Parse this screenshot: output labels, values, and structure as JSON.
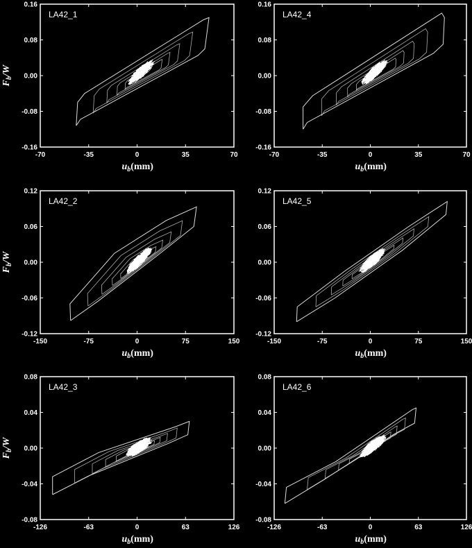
{
  "figure": {
    "xlabel_var": "u",
    "xlabel_sub": "b",
    "xlabel_unit": "(mm)",
    "ylabel_var": "F",
    "ylabel_sub": "b",
    "ylabel_den": "/W"
  },
  "chart_data": [
    {
      "type": "line",
      "label": "LA42_1",
      "xticks": [
        "-70",
        "-35",
        "0",
        "35",
        "70"
      ],
      "xlim": [
        -70,
        70
      ],
      "yticks": [
        "-0.16",
        "-0.08",
        "0.00",
        "0.08",
        "0.16"
      ],
      "ylim": [
        -0.16,
        0.16
      ],
      "envelope": [
        [
          -44,
          -0.112
        ],
        [
          -43,
          -0.06
        ],
        [
          -38,
          -0.04
        ],
        [
          48,
          0.125
        ],
        [
          52,
          0.13
        ],
        [
          49,
          0.06
        ],
        [
          44,
          0.045
        ],
        [
          -41,
          -0.098
        ],
        [
          -44,
          -0.112
        ]
      ],
      "max_displacement_mm": 52,
      "min_displacement_mm": -44,
      "max_force_ratio": 0.13,
      "min_force_ratio": -0.112
    },
    {
      "type": "line",
      "label": "LA42_4",
      "xticks": [
        "-70",
        "-35",
        "0",
        "35",
        "70"
      ],
      "xlim": [
        -70,
        70
      ],
      "yticks": [
        "-0.16",
        "-0.08",
        "0.00",
        "0.08",
        "0.16"
      ],
      "ylim": [
        -0.16,
        0.16
      ],
      "envelope": [
        [
          -49,
          -0.12
        ],
        [
          -49,
          -0.07
        ],
        [
          -42,
          -0.045
        ],
        [
          52,
          0.14
        ],
        [
          54,
          0.13
        ],
        [
          53,
          0.07
        ],
        [
          46,
          0.05
        ],
        [
          -46,
          -0.105
        ],
        [
          -49,
          -0.12
        ]
      ],
      "max_displacement_mm": 54,
      "min_displacement_mm": -49,
      "max_force_ratio": 0.14,
      "min_force_ratio": -0.12
    },
    {
      "type": "line",
      "label": "LA42_2",
      "xticks": [
        "-150",
        "-75",
        "0",
        "75",
        "150"
      ],
      "xlim": [
        -150,
        150
      ],
      "yticks": [
        "-0.12",
        "-0.06",
        "0.00",
        "0.06",
        "0.12"
      ],
      "ylim": [
        -0.12,
        0.12
      ],
      "envelope": [
        [
          -103,
          -0.098
        ],
        [
          -104,
          -0.07
        ],
        [
          -35,
          0.015
        ],
        [
          45,
          0.07
        ],
        [
          92,
          0.093
        ],
        [
          88,
          0.06
        ],
        [
          30,
          0.01
        ],
        [
          -60,
          -0.065
        ],
        [
          -103,
          -0.098
        ]
      ],
      "max_displacement_mm": 92,
      "min_displacement_mm": -104,
      "max_force_ratio": 0.093,
      "min_force_ratio": -0.098
    },
    {
      "type": "line",
      "label": "LA42_5",
      "xticks": [
        "-150",
        "-75",
        "0",
        "75",
        "150"
      ],
      "xlim": [
        -150,
        150
      ],
      "yticks": [
        "-0.12",
        "-0.06",
        "0.00",
        "0.06",
        "0.12"
      ],
      "ylim": [
        -0.12,
        0.12
      ],
      "envelope": [
        [
          -115,
          -0.1
        ],
        [
          -114,
          -0.075
        ],
        [
          -40,
          -0.015
        ],
        [
          60,
          0.06
        ],
        [
          120,
          0.102
        ],
        [
          118,
          0.08
        ],
        [
          50,
          0.02
        ],
        [
          -55,
          -0.06
        ],
        [
          -115,
          -0.1
        ]
      ],
      "max_displacement_mm": 120,
      "min_displacement_mm": -115,
      "max_force_ratio": 0.102,
      "min_force_ratio": -0.1
    },
    {
      "type": "line",
      "label": "LA42_3",
      "xticks": [
        "-126",
        "-63",
        "0",
        "63",
        "126"
      ],
      "xlim": [
        -126,
        126
      ],
      "yticks": [
        "-0.08",
        "-0.04",
        "0.00",
        "0.04",
        "0.08"
      ],
      "ylim": [
        -0.08,
        0.08
      ],
      "envelope": [
        [
          -110,
          -0.052
        ],
        [
          -110,
          -0.032
        ],
        [
          -50,
          -0.005
        ],
        [
          50,
          0.024
        ],
        [
          68,
          0.03
        ],
        [
          66,
          0.015
        ],
        [
          40,
          0.005
        ],
        [
          -60,
          -0.03
        ],
        [
          -110,
          -0.052
        ]
      ],
      "max_displacement_mm": 68,
      "min_displacement_mm": -110,
      "max_force_ratio": 0.03,
      "min_force_ratio": -0.052
    },
    {
      "type": "line",
      "label": "LA42_6",
      "xticks": [
        "-126",
        "-63",
        "0",
        "63",
        "126"
      ],
      "xlim": [
        -126,
        126
      ],
      "yticks": [
        "-0.08",
        "-0.04",
        "0.00",
        "0.04",
        "0.08"
      ],
      "ylim": [
        -0.08,
        0.08
      ],
      "envelope": [
        [
          -112,
          -0.062
        ],
        [
          -110,
          -0.044
        ],
        [
          -45,
          -0.015
        ],
        [
          55,
          0.043
        ],
        [
          60,
          0.045
        ],
        [
          58,
          0.028
        ],
        [
          30,
          0.015
        ],
        [
          -60,
          -0.035
        ],
        [
          -112,
          -0.062
        ]
      ],
      "max_displacement_mm": 60,
      "min_displacement_mm": -112,
      "max_force_ratio": 0.045,
      "min_force_ratio": -0.062
    }
  ]
}
